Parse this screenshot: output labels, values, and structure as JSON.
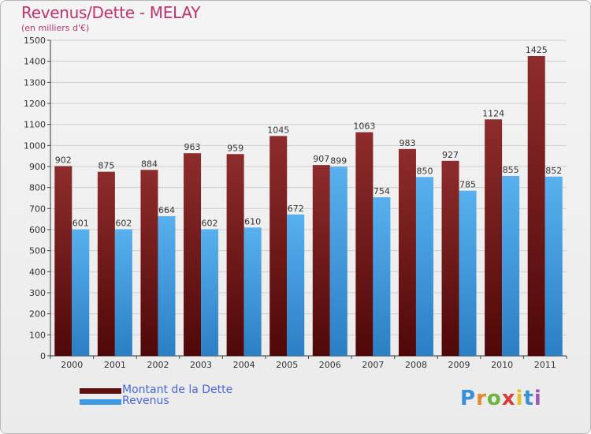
{
  "header": {
    "title": "Revenus/Dette - MELAY",
    "subtitle": "(en milliers d'€)"
  },
  "legend": [
    {
      "label": "Montant de la Dette",
      "color": "#7a1f1f"
    },
    {
      "label": "Revenus",
      "color": "#4aa3e8"
    }
  ],
  "logo": {
    "text": "Proxiti"
  },
  "chart_data": {
    "type": "bar",
    "title": "Revenus/Dette - MELAY",
    "ylabel": "(en milliers d'€)",
    "ylim": [
      0,
      1500
    ],
    "yticks": [
      0,
      100,
      200,
      300,
      400,
      500,
      600,
      700,
      800,
      900,
      1000,
      1100,
      1200,
      1300,
      1400,
      1500
    ],
    "grid": true,
    "legend_position": "bottom-left",
    "categories": [
      "2000",
      "2001",
      "2002",
      "2003",
      "2004",
      "2005",
      "2006",
      "2007",
      "2008",
      "2009",
      "2010",
      "2011"
    ],
    "series": [
      {
        "name": "Montant de la Dette",
        "color": "#7a1f1f",
        "values": [
          902,
          875,
          884,
          963,
          959,
          1045,
          907,
          1063,
          983,
          927,
          1124,
          1425
        ]
      },
      {
        "name": "Revenus",
        "color": "#4aa3e8",
        "values": [
          601,
          602,
          664,
          602,
          610,
          672,
          899,
          754,
          850,
          785,
          855,
          852
        ]
      }
    ]
  }
}
